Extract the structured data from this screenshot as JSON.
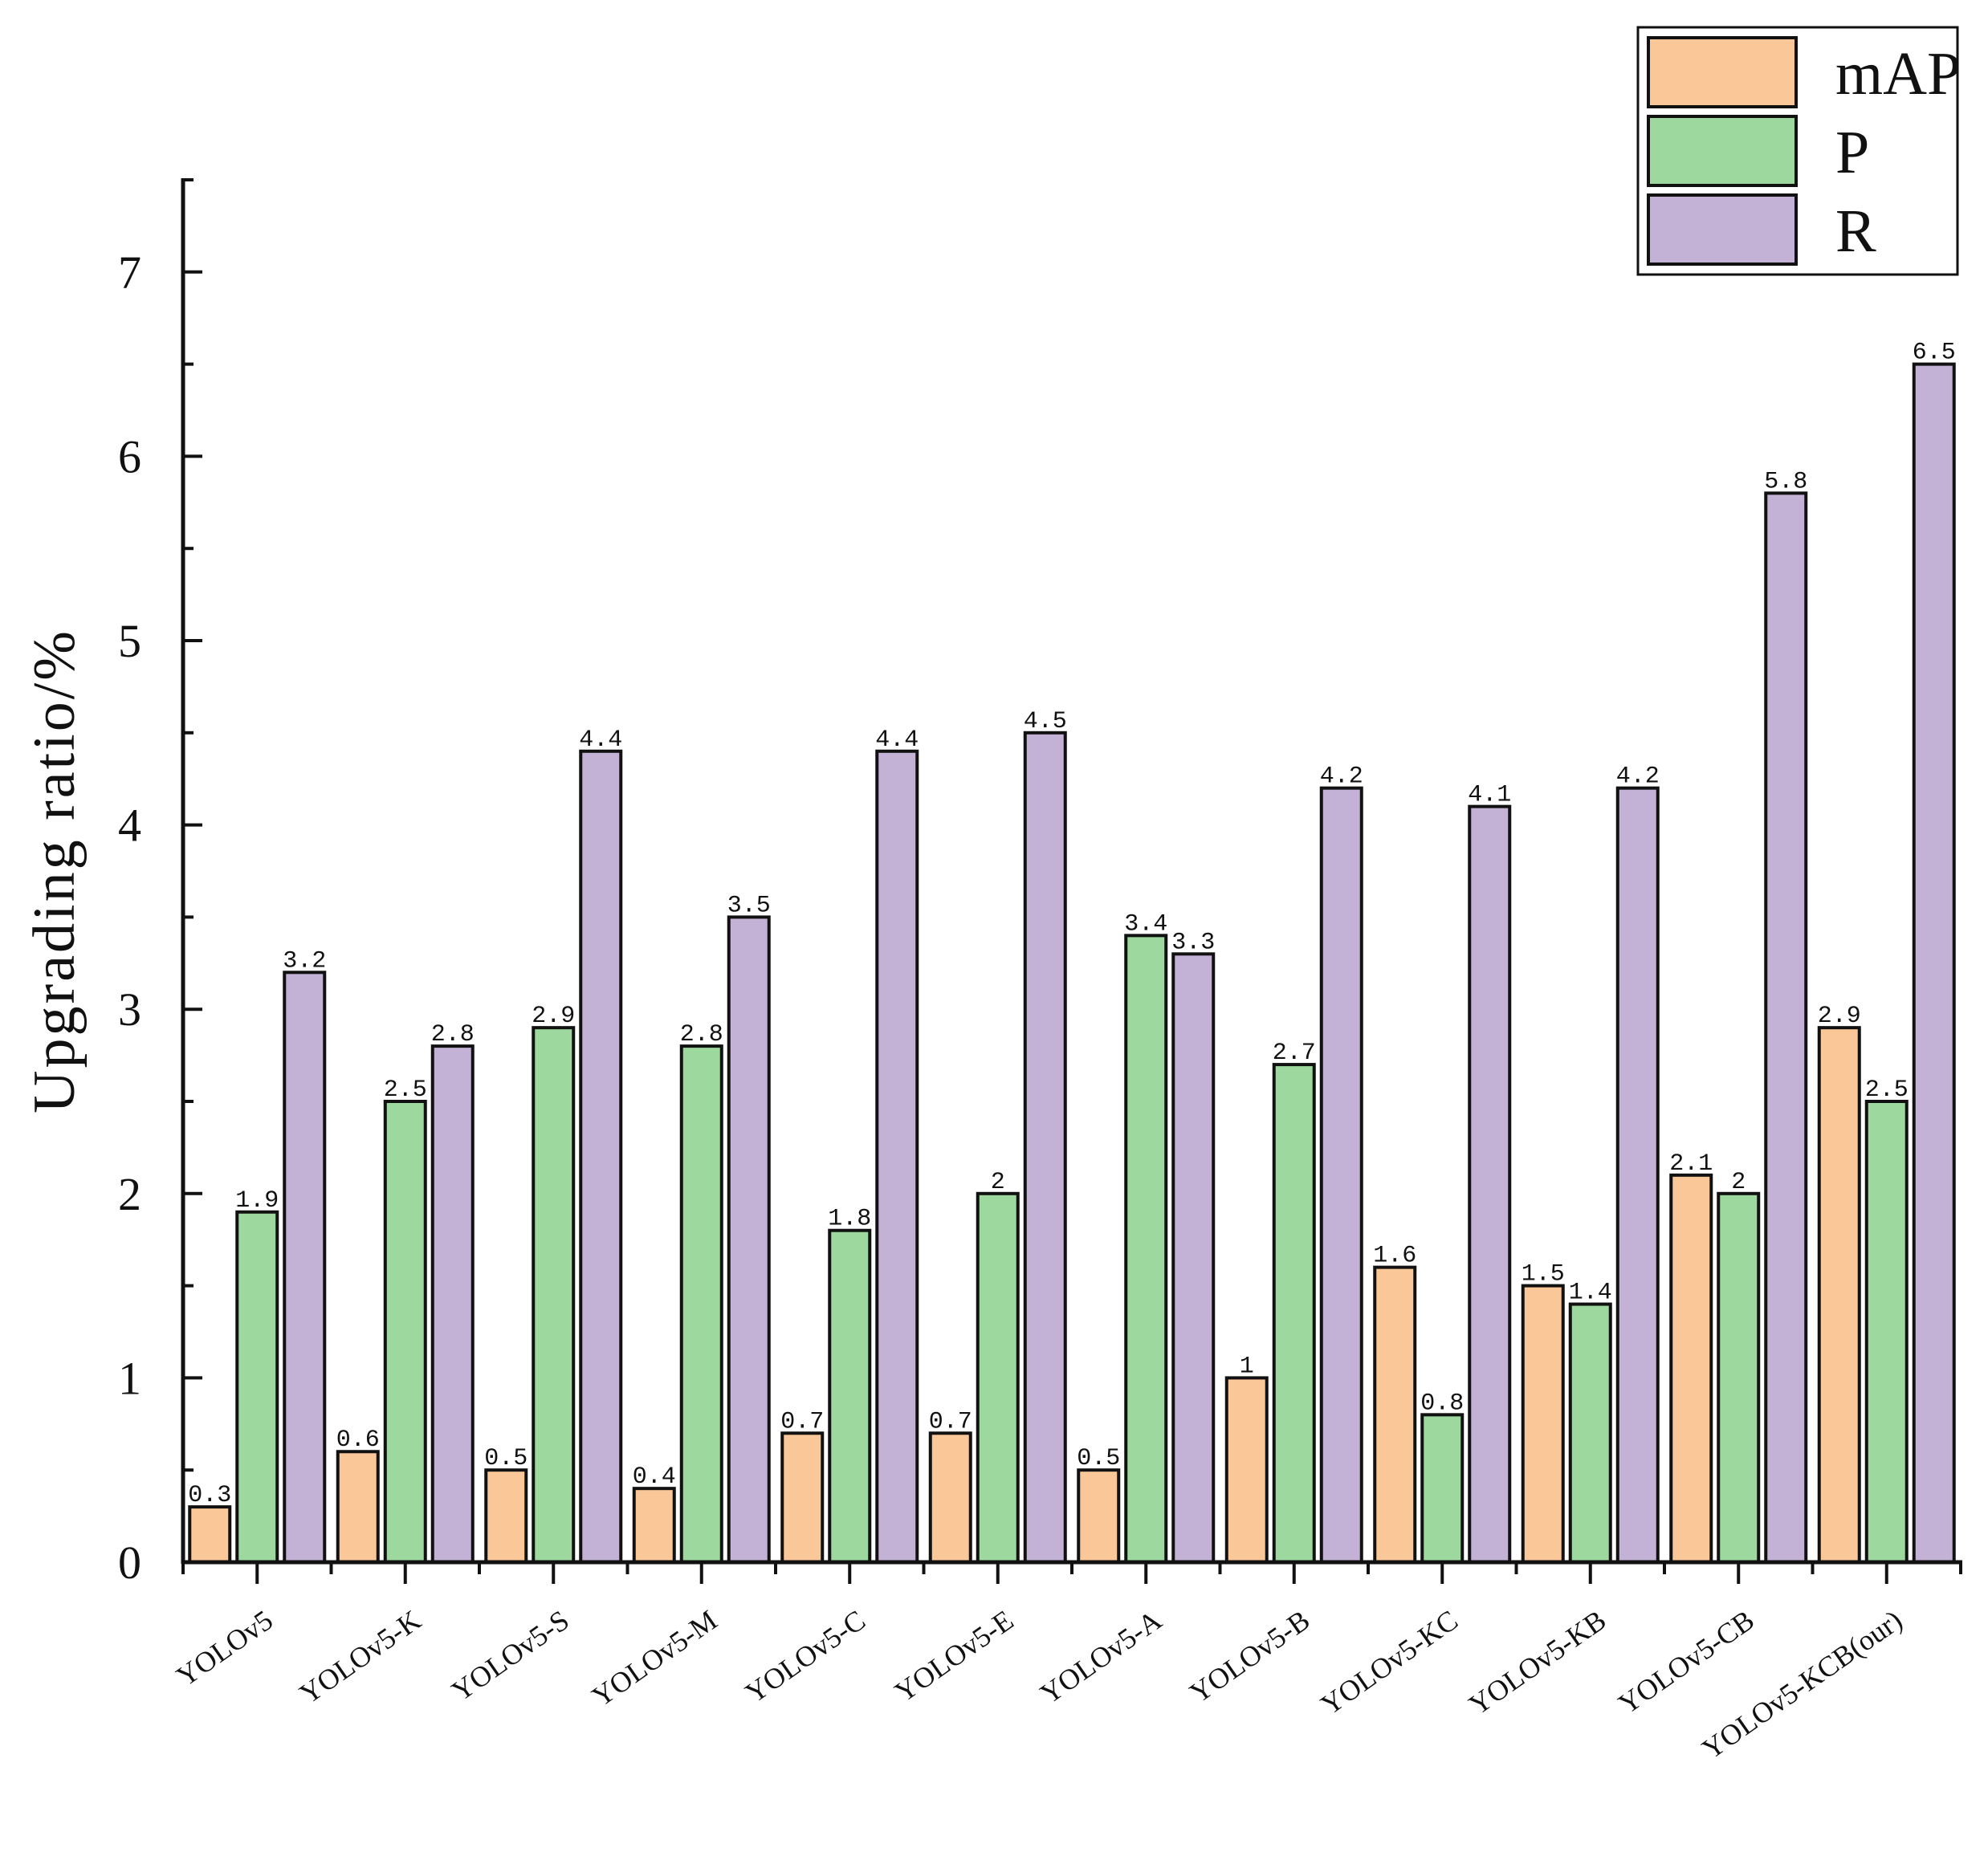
{
  "chart_data": {
    "type": "bar",
    "title": "",
    "xlabel": "",
    "ylabel": "Upgrading ratio/%",
    "ylim": [
      0,
      7.5
    ],
    "yticks": [
      0,
      1,
      2,
      3,
      4,
      5,
      6,
      7
    ],
    "categories": [
      "YOLOv5",
      "YOLOv5-K",
      "YOLOv5-S",
      "YOLOv5-M",
      "YOLOv5-C",
      "YOLOv5-E",
      "YOLOv5-A",
      "YOLOv5-B",
      "YOLOv5-KC",
      "YOLOv5-KB",
      "YOLOv5-CB",
      "YOLOv5-KCB(our)"
    ],
    "series": [
      {
        "name": "mAP",
        "color": "#FAC898",
        "values": [
          0.3,
          0.6,
          0.5,
          0.4,
          0.7,
          0.7,
          0.5,
          1,
          1.6,
          1.5,
          2.1,
          2.9
        ]
      },
      {
        "name": "P",
        "color": "#9DD89E",
        "values": [
          1.9,
          2.5,
          2.9,
          2.8,
          1.8,
          2,
          3.4,
          2.7,
          0.8,
          1.4,
          2,
          2.5
        ]
      },
      {
        "name": "R",
        "color": "#C3B1D6",
        "values": [
          3.2,
          2.8,
          4.4,
          3.5,
          4.4,
          4.5,
          3.3,
          4.2,
          4.1,
          4.2,
          5.8,
          6.5
        ]
      }
    ],
    "data_labels": [
      [
        "0.3",
        "0.6",
        "0.5",
        "0.4",
        "0.7",
        "0.7",
        "0.5",
        "1",
        "1.6",
        "1.5",
        "2.1",
        "2.9"
      ],
      [
        "1.9",
        "2.5",
        "2.9",
        "2.8",
        "1.8",
        "2",
        "3.4",
        "2.7",
        "0.8",
        "1.4",
        "2",
        "2.5"
      ],
      [
        "3.2",
        "2.8",
        "4.4",
        "3.5",
        "4.4",
        "4.5",
        "3.3",
        "4.2",
        "4.1",
        "4.2",
        "5.8",
        "6.5"
      ]
    ],
    "legend": {
      "position": "top-right",
      "entries": [
        "mAP",
        "P",
        "R"
      ]
    },
    "grid": false
  }
}
